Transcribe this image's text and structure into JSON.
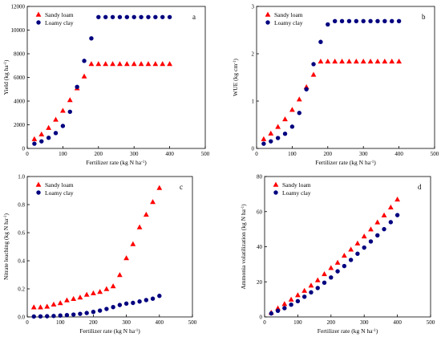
{
  "colors": {
    "sandy": "#ff0000",
    "loamy": "#00007f",
    "axis": "#000000"
  },
  "chart_data": [
    {
      "type": "scatter",
      "panel_label": "a",
      "xlabel": "Fertilizer rate (kg N ha⁻¹)",
      "ylabel": "Yield (kg ha⁻¹)",
      "xlim": [
        0,
        500
      ],
      "ylim": [
        0,
        12000
      ],
      "xticks": [
        0,
        100,
        200,
        300,
        400,
        500
      ],
      "yticks": [
        0,
        2000,
        4000,
        6000,
        8000,
        10000,
        12000
      ],
      "legend_position": "top-left",
      "grid": false,
      "series": [
        {
          "name": "Sandy loam",
          "marker": "triangle",
          "x": [
            20,
            40,
            60,
            80,
            100,
            120,
            140,
            160,
            180,
            200,
            220,
            240,
            260,
            280,
            300,
            320,
            340,
            360,
            380,
            400
          ],
          "y": [
            800,
            1200,
            1750,
            2450,
            3200,
            4100,
            5100,
            6100,
            7150,
            7150,
            7150,
            7150,
            7150,
            7150,
            7150,
            7150,
            7150,
            7150,
            7150,
            7150
          ]
        },
        {
          "name": "Loamy clay",
          "marker": "circle",
          "x": [
            20,
            40,
            60,
            80,
            100,
            120,
            140,
            160,
            180,
            200,
            220,
            240,
            260,
            280,
            300,
            320,
            340,
            360,
            380,
            400
          ],
          "y": [
            400,
            600,
            900,
            1300,
            1900,
            3100,
            5200,
            7400,
            9300,
            11100,
            11100,
            11100,
            11100,
            11100,
            11100,
            11100,
            11100,
            11100,
            11100,
            11100
          ]
        }
      ]
    },
    {
      "type": "scatter",
      "panel_label": "b",
      "xlabel": "Fertilizer rate (kg N ha⁻¹)",
      "ylabel": "WUE (kg cm⁻¹)",
      "xlim": [
        0,
        500
      ],
      "ylim": [
        0,
        3
      ],
      "xticks": [
        0,
        100,
        200,
        300,
        400,
        500
      ],
      "yticks": [
        0,
        1,
        2,
        3
      ],
      "legend_position": "top-left",
      "grid": false,
      "series": [
        {
          "name": "Sandy loam",
          "marker": "triangle",
          "x": [
            20,
            40,
            60,
            80,
            100,
            120,
            140,
            160,
            180,
            200,
            220,
            240,
            260,
            280,
            300,
            320,
            340,
            360,
            380,
            400
          ],
          "y": [
            0.2,
            0.32,
            0.46,
            0.62,
            0.82,
            1.04,
            1.3,
            1.56,
            1.84,
            1.84,
            1.84,
            1.84,
            1.84,
            1.84,
            1.84,
            1.84,
            1.84,
            1.84,
            1.84,
            1.84
          ]
        },
        {
          "name": "Loamy clay",
          "marker": "circle",
          "x": [
            20,
            40,
            60,
            80,
            100,
            120,
            140,
            160,
            180,
            200,
            220,
            240,
            260,
            280,
            300,
            320,
            340,
            360,
            380,
            400
          ],
          "y": [
            0.1,
            0.15,
            0.22,
            0.31,
            0.46,
            0.75,
            1.25,
            1.78,
            2.25,
            2.62,
            2.69,
            2.69,
            2.69,
            2.69,
            2.69,
            2.69,
            2.69,
            2.69,
            2.69,
            2.69
          ]
        }
      ]
    },
    {
      "type": "scatter",
      "panel_label": "c",
      "xlabel": "Fertilizer rate (kg N ha⁻¹)",
      "ylabel": "Nitrate leaching (kg N ha⁻¹)",
      "xlim": [
        0,
        500
      ],
      "ylim": [
        0,
        1.0
      ],
      "xticks": [
        0,
        100,
        200,
        300,
        400,
        500
      ],
      "yticks": [
        0.0,
        0.2,
        0.4,
        0.6,
        0.8,
        1.0
      ],
      "ytick_labels": [
        "0.0",
        "0.2",
        "0.4",
        "0.6",
        "0.8",
        "1.0"
      ],
      "legend_position": "top-left",
      "grid": false,
      "series": [
        {
          "name": "Sandy loam",
          "marker": "triangle",
          "x": [
            20,
            40,
            60,
            80,
            100,
            120,
            140,
            160,
            180,
            200,
            220,
            240,
            260,
            280,
            300,
            320,
            340,
            360,
            380,
            400
          ],
          "y": [
            0.07,
            0.07,
            0.075,
            0.09,
            0.1,
            0.12,
            0.13,
            0.14,
            0.16,
            0.17,
            0.18,
            0.2,
            0.22,
            0.3,
            0.42,
            0.52,
            0.64,
            0.73,
            0.82,
            0.92
          ]
        },
        {
          "name": "Loamy clay",
          "marker": "circle",
          "x": [
            20,
            40,
            60,
            80,
            100,
            120,
            140,
            160,
            180,
            200,
            220,
            240,
            260,
            280,
            300,
            320,
            340,
            360,
            380,
            400
          ],
          "y": [
            0.003,
            0.004,
            0.005,
            0.007,
            0.01,
            0.013,
            0.017,
            0.022,
            0.028,
            0.036,
            0.045,
            0.057,
            0.07,
            0.085,
            0.095,
            0.1,
            0.11,
            0.12,
            0.13,
            0.15
          ]
        }
      ]
    },
    {
      "type": "scatter",
      "panel_label": "d",
      "xlabel": "Fertilizer rate (kg N ha⁻¹)",
      "ylabel": "Ammonia volatilization (kg N ha⁻¹)",
      "xlim": [
        0,
        500
      ],
      "ylim": [
        0,
        80
      ],
      "xticks": [
        0,
        100,
        200,
        300,
        400,
        500
      ],
      "yticks": [
        0,
        20,
        40,
        60,
        80
      ],
      "legend_position": "top-left",
      "grid": false,
      "series": [
        {
          "name": "Sandy loam",
          "marker": "triangle",
          "x": [
            20,
            40,
            60,
            80,
            100,
            120,
            140,
            160,
            180,
            200,
            220,
            240,
            260,
            280,
            300,
            320,
            340,
            360,
            380,
            400
          ],
          "y": [
            2.5,
            5,
            7.5,
            10,
            12.5,
            15,
            18,
            21,
            24.5,
            28,
            31,
            35,
            38.5,
            42,
            46,
            50,
            54,
            58,
            62.5,
            67
          ]
        },
        {
          "name": "Loamy clay",
          "marker": "circle",
          "x": [
            20,
            40,
            60,
            80,
            100,
            120,
            140,
            160,
            180,
            200,
            220,
            240,
            260,
            280,
            300,
            320,
            340,
            360,
            380,
            400
          ],
          "y": [
            2,
            3.5,
            5,
            7,
            9,
            11.5,
            14,
            16.5,
            19.5,
            22.5,
            26,
            29,
            32.5,
            36,
            39.5,
            43,
            46.5,
            50,
            54,
            58
          ]
        }
      ]
    }
  ]
}
